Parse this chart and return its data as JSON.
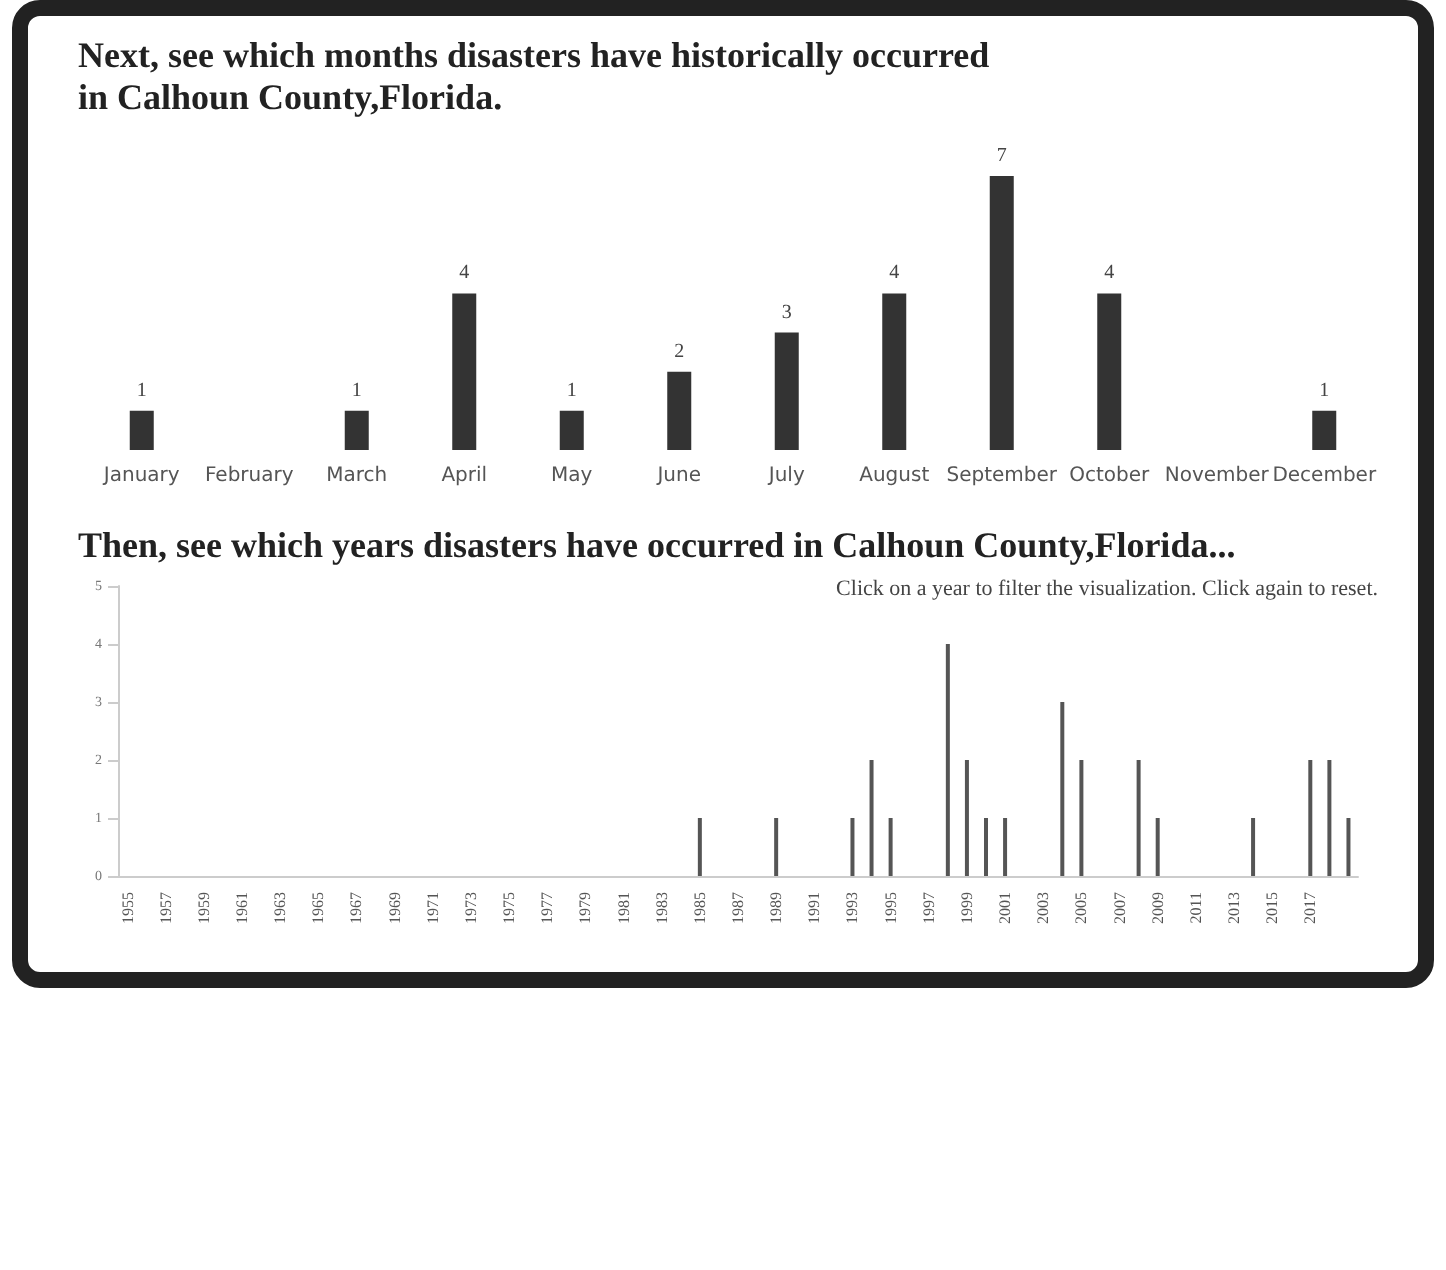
{
  "chart_data": [
    {
      "type": "bar",
      "title": "Next, see which months disasters have historically occurred in Calhoun County,Florida.",
      "categories": [
        "January",
        "February",
        "March",
        "April",
        "May",
        "June",
        "July",
        "August",
        "September",
        "October",
        "November",
        "December"
      ],
      "values": [
        1,
        null,
        1,
        4,
        1,
        2,
        3,
        4,
        7,
        4,
        null,
        1
      ],
      "color": "#333333",
      "data_labels": true,
      "grid": false,
      "tick_labels": "x"
    },
    {
      "type": "bar",
      "title": "Then, see which years disasters have occurred in Calhoun County,Florida...",
      "annotations": [
        "Click on a year to filter the visualization. Click again to reset."
      ],
      "categories": [
        "1955",
        null,
        "1957",
        null,
        "1959",
        null,
        "1961",
        null,
        "1963",
        null,
        "1965",
        null,
        "1967",
        null,
        "1969",
        null,
        "1971",
        null,
        "1973",
        null,
        "1975",
        null,
        "1977",
        null,
        "1979",
        null,
        "1981",
        null,
        "1983",
        null,
        "1985",
        null,
        "1987",
        null,
        "1989",
        null,
        "1991",
        null,
        "1993",
        null,
        "1995",
        null,
        "1997",
        null,
        "1999",
        null,
        "2001",
        null,
        "2003",
        null,
        "2005",
        null,
        "2007",
        null,
        "2009",
        null,
        "2011",
        null,
        "2013",
        null,
        "2015",
        null,
        "2017",
        null,
        null
      ],
      "values": [
        0,
        0,
        0,
        0,
        0,
        0,
        0,
        0,
        0,
        0,
        0,
        0,
        0,
        0,
        0,
        0,
        0,
        0,
        0,
        0,
        0,
        0,
        0,
        0,
        0,
        0,
        0,
        0,
        0,
        0,
        1,
        0,
        0,
        0,
        1,
        0,
        0,
        0,
        1,
        2,
        1,
        0,
        0,
        4,
        2,
        1,
        1,
        0,
        0,
        3,
        2,
        0,
        0,
        2,
        1,
        0,
        0,
        0,
        0,
        1,
        0,
        0,
        2,
        2,
        1
      ],
      "color": "#555555",
      "ylim": [
        0,
        5
      ],
      "yticks": [
        0,
        1,
        2,
        3,
        4,
        5
      ],
      "grid": false
    }
  ]
}
